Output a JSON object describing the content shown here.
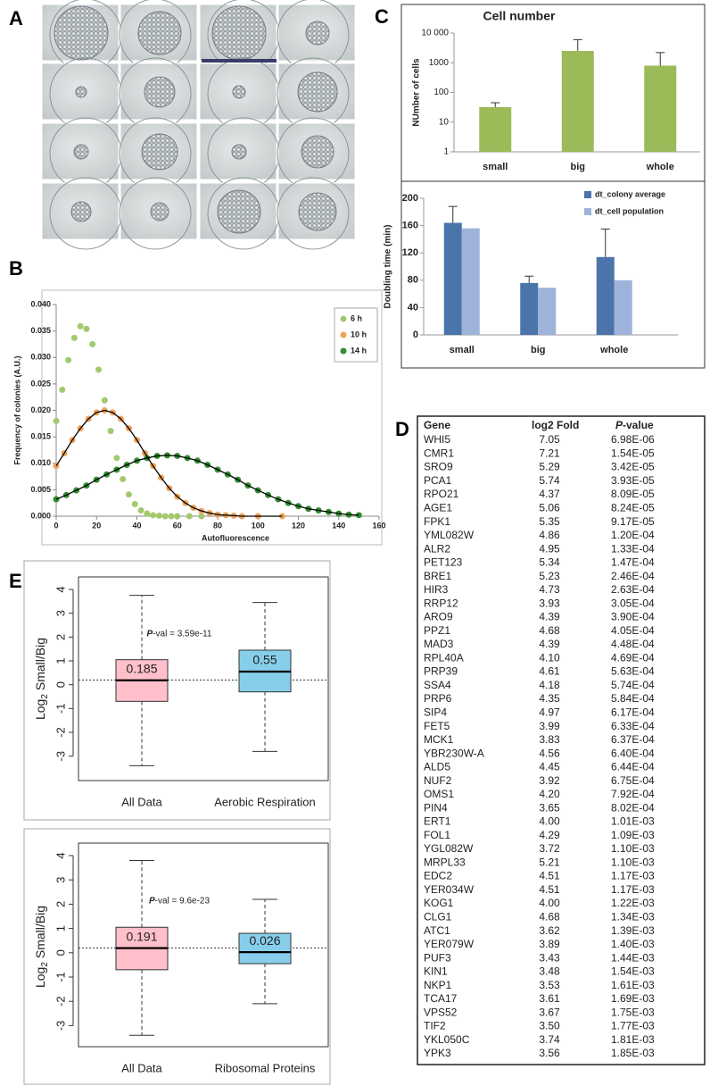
{
  "panel_labels": [
    "A",
    "B",
    "C",
    "D",
    "E"
  ],
  "chart_data": [
    {
      "type": "scatter",
      "xlabel": "Autofluorescence",
      "ylabel": "Frequency of colonies (A.U.)",
      "xlim": [
        0,
        160
      ],
      "xticks": [
        0,
        20,
        40,
        60,
        80,
        100,
        120,
        140,
        160
      ],
      "ylim": [
        0,
        0.04
      ],
      "yticks": [
        {
          "value": 0,
          "label": "0.000"
        },
        0.005,
        {
          "value": 0.01,
          "label": "0.010"
        },
        0.015,
        {
          "value": 0.02,
          "label": "0.020"
        },
        0.025,
        {
          "value": 0.03,
          "label": "0.030"
        },
        0.035,
        {
          "value": 0.04,
          "label": "0.040"
        }
      ],
      "legend": "upper right",
      "series": [
        {
          "name": "6 h",
          "color": "#a2c96e",
          "x": [
            0,
            3,
            6,
            9,
            12,
            15,
            18,
            21,
            24,
            27,
            30,
            33,
            36,
            39,
            42,
            45,
            48,
            51,
            54,
            57,
            60,
            66,
            72
          ],
          "values": [
            0.018,
            0.0239,
            0.0295,
            0.0337,
            0.0359,
            0.0354,
            0.0325,
            0.0277,
            0.0219,
            0.0161,
            0.011,
            0.007,
            0.0041,
            0.0023,
            0.0011,
            0.0005,
            0.0002,
            0.0001,
            0,
            0,
            0,
            0,
            0
          ]
        },
        {
          "name": "10 h",
          "color": "#f0a25a",
          "fit_color": "#000000",
          "x": [
            0,
            4,
            8,
            12,
            16,
            20,
            24,
            28,
            32,
            36,
            40,
            44,
            48,
            52,
            56,
            60,
            64,
            68,
            72,
            76,
            80,
            84,
            88,
            92,
            100,
            112
          ],
          "values": [
            0.0095,
            0.0119,
            0.0144,
            0.0166,
            0.0184,
            0.0196,
            0.02,
            0.0196,
            0.0184,
            0.0166,
            0.0144,
            0.0119,
            0.0095,
            0.0073,
            0.0053,
            0.0037,
            0.0025,
            0.0016,
            0.001,
            0.0006,
            0.0003,
            0.0002,
            0.0001,
            0,
            0,
            0
          ]
        },
        {
          "name": "14 h",
          "color": "#2f8f2f",
          "fit_color": "#000000",
          "x": [
            0,
            5,
            10,
            15,
            20,
            25,
            30,
            35,
            40,
            45,
            50,
            55,
            60,
            65,
            70,
            75,
            80,
            85,
            90,
            95,
            100,
            105,
            110,
            115,
            120,
            125,
            130,
            135,
            140,
            145,
            150
          ],
          "values": [
            0.0032,
            0.004,
            0.0049,
            0.0058,
            0.0069,
            0.0079,
            0.0088,
            0.0097,
            0.0105,
            0.011,
            0.0114,
            0.0115,
            0.0114,
            0.011,
            0.0105,
            0.0097,
            0.0088,
            0.0079,
            0.0069,
            0.0058,
            0.0049,
            0.004,
            0.0032,
            0.0025,
            0.0019,
            0.0014,
            0.0011,
            0.0008,
            0.0005,
            0.0003,
            0.0002
          ]
        }
      ]
    },
    {
      "type": "bar",
      "title": "Cell number",
      "ylabel": "NUmber of cells",
      "yscale": "log",
      "categories": [
        "small",
        "big",
        "whole"
      ],
      "values": [
        32,
        2500,
        800
      ],
      "errors": [
        13,
        3500,
        1400
      ],
      "color": "#9bbb59",
      "ylim": [
        1,
        10000
      ],
      "yticks": [
        1,
        10,
        100,
        1000,
        {
          "value": 10000,
          "label": "10 000"
        }
      ]
    },
    {
      "type": "bar",
      "ylabel": "Doubling time (min)",
      "categories": [
        "small",
        "big",
        "whole"
      ],
      "series": [
        {
          "name": "dt_colony average",
          "color": "#4a74aa",
          "values": [
            164,
            76,
            114
          ],
          "errors": [
            24,
            10,
            41
          ]
        },
        {
          "name": "dt_cell population",
          "color": "#9db3d9",
          "values": [
            156,
            69,
            80
          ]
        }
      ],
      "legend": "upper right",
      "ylim": [
        0,
        200
      ],
      "yticks": [
        0,
        40,
        80,
        120,
        160,
        200
      ]
    },
    {
      "type": "box",
      "ylabel": {
        "base": "Log",
        "subscript": "2",
        "rest": "Small/Big"
      },
      "categories": [
        "All Data",
        "Aerobic Respiration"
      ],
      "colors": [
        "#ffc0cb",
        "#87ceeb"
      ],
      "stats": {
        "low": [
          -3.4,
          -2.8
        ],
        "q1": [
          -0.7,
          -0.3
        ],
        "median": [
          0.185,
          0.55
        ],
        "q3": [
          1.05,
          1.45
        ],
        "high": [
          3.75,
          3.45
        ]
      },
      "hline": 0.2,
      "annotation": {
        "italic": "P",
        "rest": "-val = 3.59e-11"
      },
      "ylim": [
        -3.5,
        4
      ],
      "yticks": [
        -3,
        -2,
        -1,
        0,
        1,
        2,
        3,
        4
      ]
    },
    {
      "type": "box",
      "ylabel": {
        "base": "Log",
        "subscript": "2",
        "rest": "Small/Big"
      },
      "categories": [
        "All Data",
        "Ribosomal Proteins"
      ],
      "colors": [
        "#ffc0cb",
        "#87ceeb"
      ],
      "stats": {
        "low": [
          -3.4,
          -2.1
        ],
        "q1": [
          -0.7,
          -0.45
        ],
        "median": [
          0.191,
          0.026
        ],
        "q3": [
          1.05,
          0.8
        ],
        "high": [
          3.8,
          2.2
        ]
      },
      "hline": 0.2,
      "annotation": {
        "italic": "P",
        "rest": "-val = 9.6e-23"
      },
      "ylim": [
        -3.5,
        4
      ],
      "yticks": [
        -3,
        -2,
        -1,
        0,
        1,
        2,
        3,
        4
      ]
    }
  ],
  "table": {
    "header": {
      "gene": "Gene",
      "fold": "log2 Fold",
      "p_italic": "P",
      "p_rest": "-value"
    },
    "rows": [
      [
        "WHI5",
        "7.05",
        "6.98E-06"
      ],
      [
        "CMR1",
        "7.21",
        "1.54E-05"
      ],
      [
        "SRO9",
        "5.29",
        "3.42E-05"
      ],
      [
        "PCA1",
        "5.74",
        "3.93E-05"
      ],
      [
        "RPO21",
        "4.37",
        "8.09E-05"
      ],
      [
        "AGE1",
        "5.06",
        "8.24E-05"
      ],
      [
        "FPK1",
        "5.35",
        "9.17E-05"
      ],
      [
        "YML082W",
        "4.86",
        "1.20E-04"
      ],
      [
        "ALR2",
        "4.95",
        "1.33E-04"
      ],
      [
        "PET123",
        "5.34",
        "1.47E-04"
      ],
      [
        "BRE1",
        "5.23",
        "2.46E-04"
      ],
      [
        "HIR3",
        "4.73",
        "2.63E-04"
      ],
      [
        "RRP12",
        "3.93",
        "3.05E-04"
      ],
      [
        "ARO9",
        "4.39",
        "3.90E-04"
      ],
      [
        "PPZ1",
        "4.68",
        "4.05E-04"
      ],
      [
        "MAD3",
        "4.39",
        "4.48E-04"
      ],
      [
        "RPL40A",
        "4.10",
        "4.69E-04"
      ],
      [
        "PRP39",
        "4.61",
        "5.63E-04"
      ],
      [
        "SSA4",
        "4.18",
        "5.74E-04"
      ],
      [
        "PRP6",
        "4.35",
        "5.84E-04"
      ],
      [
        "SIP4",
        "4.97",
        "6.17E-04"
      ],
      [
        "FET5",
        "3.99",
        "6.33E-04"
      ],
      [
        "MCK1",
        "3.83",
        "6.37E-04"
      ],
      [
        "YBR230W-A",
        "4.56",
        "6.40E-04"
      ],
      [
        "ALD5",
        "4.45",
        "6.44E-04"
      ],
      [
        "NUF2",
        "3.92",
        "6.75E-04"
      ],
      [
        "OMS1",
        "4.20",
        "7.92E-04"
      ],
      [
        "PIN4",
        "3.65",
        "8.02E-04"
      ],
      [
        "ERT1",
        "4.00",
        "1.01E-03"
      ],
      [
        "FOL1",
        "4.29",
        "1.09E-03"
      ],
      [
        "YGL082W",
        "3.72",
        "1.10E-03"
      ],
      [
        "MRPL33",
        "5.21",
        "1.10E-03"
      ],
      [
        "EDC2",
        "4.51",
        "1.17E-03"
      ],
      [
        "YER034W",
        "4.51",
        "1.17E-03"
      ],
      [
        "KOG1",
        "4.00",
        "1.22E-03"
      ],
      [
        "CLG1",
        "4.68",
        "1.34E-03"
      ],
      [
        "ATC1",
        "3.62",
        "1.39E-03"
      ],
      [
        "YER079W",
        "3.89",
        "1.40E-03"
      ],
      [
        "PUF3",
        "3.43",
        "1.44E-03"
      ],
      [
        "KIN1",
        "3.48",
        "1.54E-03"
      ],
      [
        "NKP1",
        "3.53",
        "1.61E-03"
      ],
      [
        "TCA17",
        "3.61",
        "1.69E-03"
      ],
      [
        "VPS52",
        "3.67",
        "1.75E-03"
      ],
      [
        "TIF2",
        "3.50",
        "1.77E-03"
      ],
      [
        "YKL050C",
        "3.74",
        "1.81E-03"
      ],
      [
        "YPK3",
        "3.56",
        "1.85E-03"
      ]
    ],
    "row_colors": [
      "#2e9a2e",
      "#2e9a2e",
      "#222222",
      "#222222",
      "#222222",
      "#222222",
      "#222222",
      "#222222",
      "#222222",
      "#e03030",
      "#222222",
      "#222222",
      "#222222",
      "#222222",
      "#2e9a2e",
      "#2e9a2e",
      "#222222",
      "#222222",
      "#222222",
      "#222222",
      "#e03030",
      "#222222",
      "#2e9a2e",
      "#e03030",
      "#e03030",
      "#2e9a2e",
      "#e03030",
      "#2e9a2e",
      "#e03030",
      "#e03030",
      "#222222",
      "#e03030",
      "#222222",
      "#222222",
      "#2e9a2e",
      "#2e9a2e",
      "#222222",
      "#222222",
      "#e03030",
      "#222222",
      "#222222",
      "#222222",
      "#222222",
      "#222222",
      "#222222",
      "#222222"
    ]
  }
}
